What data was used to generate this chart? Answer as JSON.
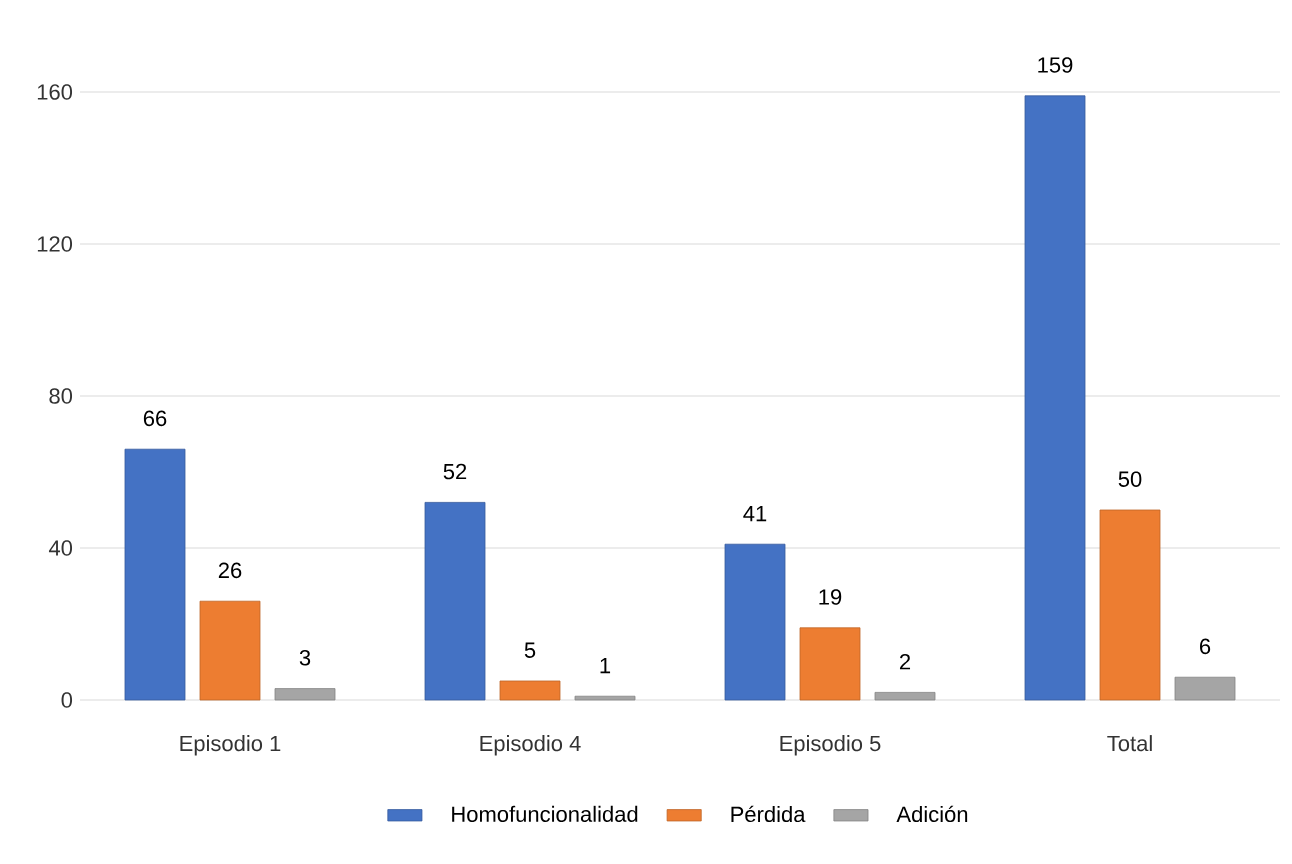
{
  "chart_data": {
    "type": "bar",
    "categories": [
      "Episodio 1",
      "Episodio 4",
      "Episodio 5",
      "Total"
    ],
    "series": [
      {
        "name": "Homofuncionalidad",
        "color": "#4472c4",
        "values": [
          66,
          52,
          41,
          159
        ]
      },
      {
        "name": "Pérdida",
        "color": "#ed7d31",
        "values": [
          26,
          5,
          19,
          50
        ]
      },
      {
        "name": "Adición",
        "color": "#a5a5a5",
        "values": [
          3,
          1,
          2,
          6
        ]
      }
    ],
    "ylim": [
      0,
      160
    ],
    "yticks": [
      0,
      40,
      80,
      120,
      160
    ],
    "grid": "y",
    "legend": "bottom",
    "data_labels": true
  }
}
